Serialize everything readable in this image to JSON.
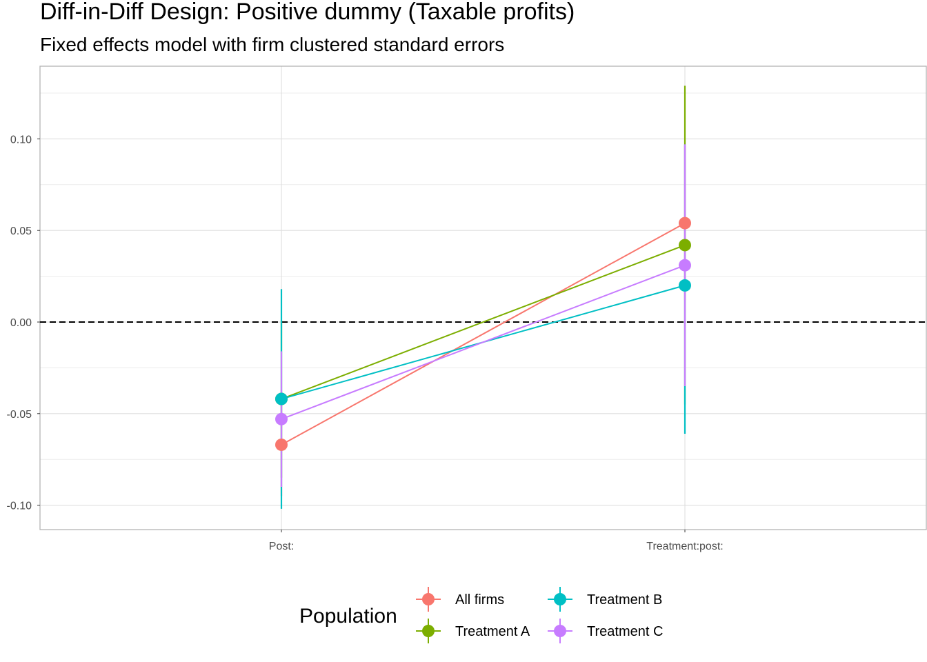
{
  "chart_data": {
    "type": "scatter",
    "title": "Diff-in-Diff Design: Positive dummy (Taxable profits)",
    "subtitle": "Fixed effects model with firm clustered standard errors",
    "xlabel": "",
    "ylabel": "",
    "categories": [
      "Post:",
      "Treatment:post:"
    ],
    "ylim": [
      -0.113,
      0.14
    ],
    "yticks": [
      -0.1,
      -0.05,
      0.0,
      0.05,
      0.1
    ],
    "ytick_labels": [
      "-0.10",
      "-0.05",
      "0.00",
      "0.05",
      "0.10"
    ],
    "reference_line": {
      "y": 0,
      "style": "dashed",
      "color": "#000000"
    },
    "grid": true,
    "legend": {
      "title": "Population",
      "position": "bottom"
    },
    "series": [
      {
        "name": "All firms",
        "color": "#F8766D",
        "values": [
          -0.067,
          0.054
        ],
        "lower": [
          -0.095,
          0.012
        ],
        "upper": [
          -0.04,
          0.096
        ]
      },
      {
        "name": "Treatment A",
        "color": "#7CAE00",
        "values": [
          -0.042,
          0.042
        ],
        "lower": [
          -0.085,
          -0.045
        ],
        "upper": [
          0.001,
          0.129
        ]
      },
      {
        "name": "Treatment B",
        "color": "#00BFC4",
        "values": [
          -0.042,
          0.02
        ],
        "lower": [
          -0.102,
          -0.061
        ],
        "upper": [
          0.018,
          0.097
        ]
      },
      {
        "name": "Treatment C",
        "color": "#C77CFF",
        "values": [
          -0.053,
          0.031
        ],
        "lower": [
          -0.09,
          -0.035
        ],
        "upper": [
          -0.016,
          0.097
        ]
      }
    ]
  }
}
